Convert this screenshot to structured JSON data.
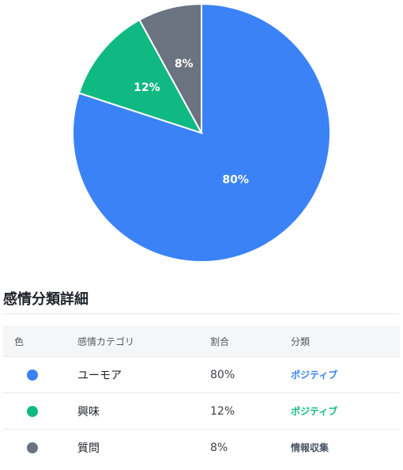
{
  "chart_data": {
    "type": "pie",
    "slices": [
      {
        "label": "ユーモア",
        "value": 80,
        "display": "80%",
        "color": "#3b82f6"
      },
      {
        "label": "興味",
        "value": 12,
        "display": "12%",
        "color": "#10b981"
      },
      {
        "label": "質問",
        "value": 8,
        "display": "8%",
        "color": "#6b7280"
      }
    ]
  },
  "section": {
    "title": "感情分類詳細"
  },
  "table": {
    "headers": {
      "color": "色",
      "category": "感情カテゴリ",
      "ratio": "割合",
      "class": "分類"
    },
    "rows": [
      {
        "color": "#3b82f6",
        "category": "ユーモア",
        "ratio": "80%",
        "class": "ポジティブ",
        "class_color": "#3b82f6"
      },
      {
        "color": "#10b981",
        "category": "興味",
        "ratio": "12%",
        "class": "ポジティブ",
        "class_color": "#10b981"
      },
      {
        "color": "#6b7280",
        "category": "質問",
        "ratio": "8%",
        "class": "情報収集",
        "class_color": "#4b5563"
      }
    ]
  }
}
